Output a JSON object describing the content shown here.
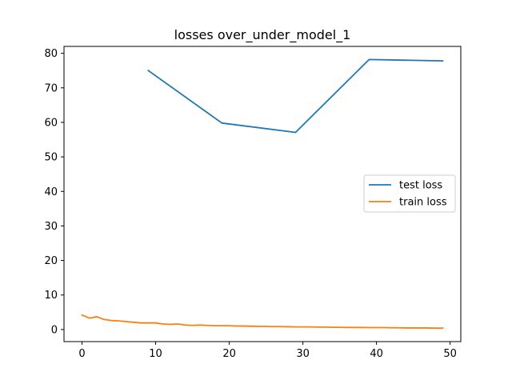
{
  "chart_data": {
    "type": "line",
    "title": "losses over_under_model_1",
    "xlabel": "",
    "ylabel": "",
    "xlim": [
      -2.45,
      51.45
    ],
    "ylim": [
      -3.5,
      82
    ],
    "xticks": [
      0,
      10,
      20,
      30,
      40,
      50
    ],
    "yticks": [
      0,
      10,
      20,
      30,
      40,
      50,
      60,
      70,
      80
    ],
    "grid": false,
    "legend_position": "center-right",
    "series": [
      {
        "name": "test loss",
        "color": "#1f77b4",
        "x": [
          9,
          19,
          29,
          39,
          49
        ],
        "y": [
          75.0,
          59.8,
          57.1,
          78.2,
          77.8
        ]
      },
      {
        "name": "train loss",
        "color": "#ff7f0e",
        "x": [
          0,
          1,
          2,
          3,
          4,
          5,
          6,
          7,
          8,
          9,
          10,
          11,
          12,
          13,
          14,
          15,
          16,
          17,
          18,
          19,
          20,
          21,
          22,
          23,
          24,
          25,
          26,
          27,
          28,
          29,
          30,
          31,
          32,
          33,
          34,
          35,
          36,
          37,
          38,
          39,
          40,
          41,
          42,
          43,
          44,
          45,
          46,
          47,
          48,
          49
        ],
        "y": [
          4.2,
          3.3,
          3.7,
          2.9,
          2.6,
          2.5,
          2.3,
          2.1,
          1.9,
          1.9,
          1.9,
          1.6,
          1.5,
          1.6,
          1.3,
          1.2,
          1.3,
          1.2,
          1.1,
          1.1,
          1.1,
          1.0,
          1.0,
          0.95,
          0.9,
          0.9,
          0.85,
          0.85,
          0.8,
          0.75,
          0.75,
          0.75,
          0.7,
          0.7,
          0.65,
          0.65,
          0.6,
          0.6,
          0.6,
          0.55,
          0.55,
          0.55,
          0.5,
          0.5,
          0.45,
          0.45,
          0.45,
          0.45,
          0.4,
          0.4
        ]
      }
    ]
  }
}
